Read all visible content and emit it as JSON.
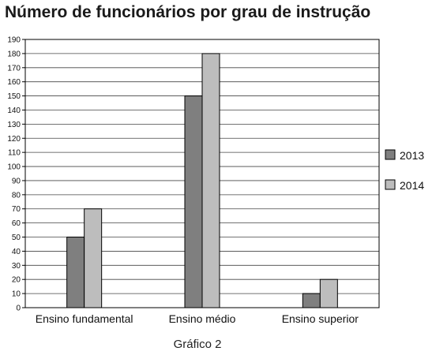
{
  "chart_data": {
    "type": "bar",
    "title": "Número de funcionários por grau de instrução",
    "caption": "Gráfico 2",
    "categories": [
      "Ensino fundamental",
      "Ensino médio",
      "Ensino superior"
    ],
    "series": [
      {
        "name": "2013",
        "values": [
          50,
          150,
          10
        ],
        "color": "#7f7f7f"
      },
      {
        "name": "2014",
        "values": [
          70,
          180,
          20
        ],
        "color": "#bdbdbd"
      }
    ],
    "ylim": [
      0,
      190
    ],
    "ytick_step": 10,
    "grid": true,
    "legend_position": "right"
  }
}
